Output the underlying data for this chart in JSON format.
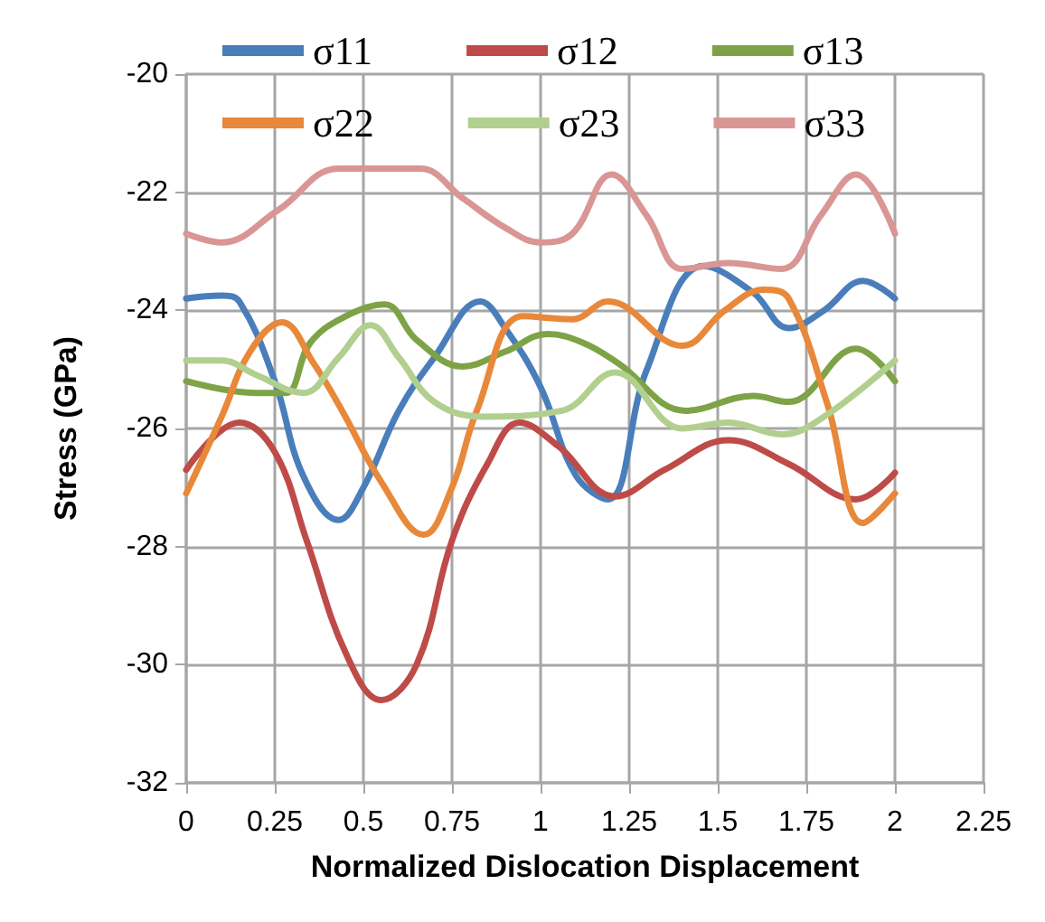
{
  "chart_data": {
    "type": "line",
    "xlabel": "Normalized Dislocation Displacement",
    "ylabel": "Stress (GPa)",
    "xlim": [
      0,
      2.25
    ],
    "xticks": [
      0,
      0.25,
      0.5,
      0.75,
      1,
      1.25,
      1.5,
      1.75,
      2,
      2.25
    ],
    "ylim": [
      -32,
      -20
    ],
    "yticks": [
      -32,
      -30,
      -28,
      -26,
      -24,
      -22,
      -20
    ],
    "grid": true,
    "legend": "top",
    "marker": "none",
    "line_style": "solid",
    "series": [
      {
        "name": "σ11",
        "color": "#4a7ebb",
        "x": [
          0,
          0.1,
          0.15,
          0.25,
          0.33,
          0.43,
          0.5,
          0.6,
          0.7,
          0.83,
          0.9,
          1,
          1.1,
          1.19,
          1.3,
          1.46,
          1.6,
          1.7,
          1.8,
          1.91,
          2
        ],
        "values": [
          -23.8,
          -23.75,
          -23.85,
          -25.2,
          -26.8,
          -27.55,
          -27.0,
          -25.7,
          -24.8,
          -23.85,
          -24.3,
          -25.3,
          -26.8,
          -27.2,
          -25.0,
          -23.25,
          -23.7,
          -24.3,
          -24.0,
          -23.5,
          -23.8
        ]
      },
      {
        "name": "σ12",
        "color": "#be4b48",
        "x": [
          0,
          0.15,
          0.25,
          0.34,
          0.45,
          0.55,
          0.65,
          0.75,
          0.85,
          0.94,
          1.05,
          1.21,
          1.35,
          1.53,
          1.7,
          1.89,
          2
        ],
        "values": [
          -26.7,
          -25.9,
          -26.4,
          -27.9,
          -29.8,
          -30.6,
          -30.0,
          -27.9,
          -26.6,
          -25.9,
          -26.3,
          -27.15,
          -26.7,
          -26.2,
          -26.6,
          -27.2,
          -26.75
        ]
      },
      {
        "name": "σ13",
        "color": "#7ea346",
        "x": [
          0,
          0.2,
          0.28,
          0.35,
          0.45,
          0.56,
          0.65,
          0.78,
          0.9,
          1.02,
          1.12,
          1.22,
          1.41,
          1.6,
          1.7,
          1.89,
          2
        ],
        "values": [
          -25.2,
          -25.4,
          -25.4,
          -24.55,
          -24.1,
          -23.9,
          -24.5,
          -24.95,
          -24.7,
          -24.4,
          -24.55,
          -24.9,
          -25.7,
          -25.45,
          -25.55,
          -24.65,
          -25.2
        ]
      },
      {
        "name": "σ22",
        "color": "#e8883a",
        "x": [
          0,
          0.1,
          0.18,
          0.27,
          0.36,
          0.44,
          0.55,
          0.67,
          0.75,
          0.82,
          0.95,
          1.09,
          1.19,
          1.4,
          1.52,
          1.63,
          1.7,
          1.81,
          1.91,
          2
        ],
        "values": [
          -27.1,
          -25.8,
          -24.7,
          -24.2,
          -24.9,
          -25.7,
          -26.9,
          -27.8,
          -27.0,
          -25.7,
          -24.1,
          -24.15,
          -23.85,
          -24.6,
          -24.0,
          -23.65,
          -23.8,
          -25.6,
          -27.6,
          -27.1
        ]
      },
      {
        "name": "σ23",
        "color": "#b1cf8e",
        "x": [
          0,
          0.1,
          0.2,
          0.33,
          0.43,
          0.52,
          0.6,
          0.7,
          0.84,
          1.06,
          1.21,
          1.4,
          1.53,
          1.68,
          1.8,
          2
        ],
        "values": [
          -24.85,
          -24.85,
          -25.1,
          -25.4,
          -24.8,
          -24.25,
          -24.8,
          -25.55,
          -25.8,
          -25.7,
          -25.05,
          -26.0,
          -25.9,
          -26.1,
          -25.8,
          -24.85
        ]
      },
      {
        "name": "σ33",
        "color": "#d99694",
        "x": [
          0,
          0.1,
          0.26,
          0.43,
          0.66,
          0.78,
          0.9,
          1,
          1.09,
          1.2,
          1.3,
          1.4,
          1.53,
          1.68,
          1.79,
          1.89,
          2
        ],
        "values": [
          -22.7,
          -22.85,
          -22.3,
          -21.6,
          -21.6,
          -22.1,
          -22.6,
          -22.85,
          -22.7,
          -21.7,
          -22.4,
          -23.3,
          -23.2,
          -23.3,
          -22.4,
          -21.7,
          -22.7
        ]
      }
    ]
  }
}
